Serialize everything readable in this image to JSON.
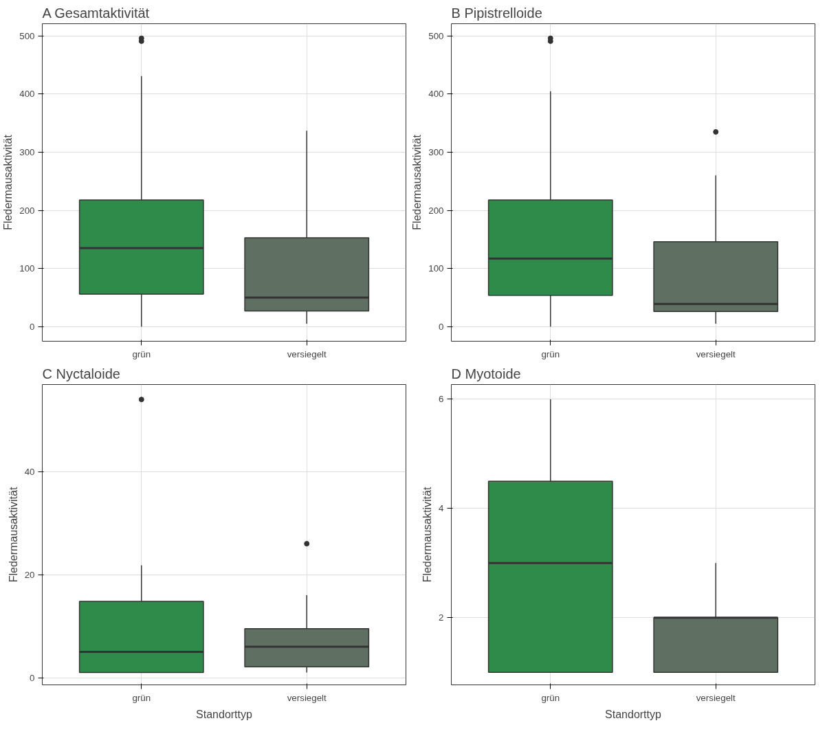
{
  "chart_data": [
    {
      "type": "box",
      "title": "Gesamtaktivität",
      "annotations": [
        "A"
      ],
      "ylabel": "Fledermausaktivität",
      "categories": [
        "grün",
        "versiegelt"
      ],
      "colors": [
        "#2e8b4a",
        "#5f7063"
      ],
      "ylim": [
        -25,
        521
      ],
      "yticks": [
        0,
        100,
        200,
        300,
        400,
        500
      ],
      "grid": true,
      "boxes": [
        {
          "low": 0,
          "q1": 56,
          "median": 135,
          "q3": 218,
          "high": 431,
          "outliers": [
            491,
            496
          ]
        },
        {
          "low": 5,
          "q1": 27,
          "median": 50,
          "q3": 153,
          "high": 337
        }
      ]
    },
    {
      "type": "box",
      "title": "Pipistrelloide",
      "annotations": [
        "B"
      ],
      "ylabel": "Fledermausaktivität",
      "categories": [
        "grün",
        "versiegelt"
      ],
      "colors": [
        "#2e8b4a",
        "#5f7063"
      ],
      "ylim": [
        -25,
        521
      ],
      "yticks": [
        0,
        100,
        200,
        300,
        400,
        500
      ],
      "grid": true,
      "boxes": [
        {
          "low": 0,
          "q1": 54,
          "median": 117,
          "q3": 218,
          "high": 405,
          "outliers": [
            491,
            496
          ]
        },
        {
          "low": 5,
          "q1": 26,
          "median": 39,
          "q3": 146,
          "high": 260,
          "outliers": [
            335
          ]
        }
      ]
    },
    {
      "type": "box",
      "title": "Nyctaloide",
      "annotations": [
        "C"
      ],
      "xlabel": "Standorttyp",
      "ylabel": "Fledermausaktivität",
      "categories": [
        "grün",
        "versiegelt"
      ],
      "colors": [
        "#2e8b4a",
        "#5f7063"
      ],
      "ylim": [
        -1.4,
        56.9
      ],
      "yticks": [
        0,
        20,
        40
      ],
      "grid": true,
      "boxes": [
        {
          "low": 1,
          "q1": 1,
          "median": 5,
          "q3": 14.8,
          "high": 21.8,
          "outliers": [
            54
          ]
        },
        {
          "low": 1,
          "q1": 2.1,
          "median": 6,
          "q3": 9.5,
          "high": 16,
          "outliers": [
            26
          ]
        }
      ]
    },
    {
      "type": "box",
      "title": "Myotoide",
      "annotations": [
        "D"
      ],
      "xlabel": "Standorttyp",
      "ylabel": "Fledermausaktivität",
      "categories": [
        "grün",
        "versiegelt"
      ],
      "colors": [
        "#2e8b4a",
        "#5f7063"
      ],
      "ylim": [
        0.77,
        6.27
      ],
      "yticks": [
        2,
        4,
        6
      ],
      "grid": true,
      "boxes": [
        {
          "low": 1,
          "q1": 1,
          "median": 3,
          "q3": 4.5,
          "high": 6
        },
        {
          "low": 1,
          "q1": 1,
          "median": 2,
          "q3": 2,
          "high": 3
        }
      ]
    }
  ]
}
